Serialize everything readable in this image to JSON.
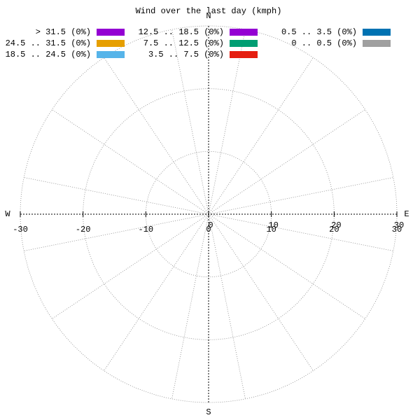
{
  "chart_data": {
    "type": "windrose",
    "title": "Wind over the last day (kmph)",
    "directions": [
      "N",
      "E",
      "S",
      "W"
    ],
    "xlim": [
      -30,
      30
    ],
    "xticks": [
      -30,
      -20,
      -10,
      0,
      10,
      20,
      30
    ],
    "rticks": [
      0,
      10,
      20,
      30
    ],
    "grid": true,
    "series": [
      {
        "name": "> 31.5 (0%)",
        "color": "#9400d3"
      },
      {
        "name": "24.5 .. 31.5 (0%)",
        "color": "#e69f00"
      },
      {
        "name": "18.5 .. 24.5 (0%)",
        "color": "#56b4e9"
      },
      {
        "name": "12.5 .. 18.5 (0%)",
        "color": "#9400d3"
      },
      {
        "name": "7.5 .. 12.5 (0%)",
        "color": "#009e73"
      },
      {
        "name": "3.5 .. 7.5 (0%)",
        "color": "#e51e10"
      },
      {
        "name": "0.5 .. 3.5 (0%)",
        "color": "#0072b2"
      },
      {
        "name": "0 .. 0.5 (0%)",
        "color": "#a0a0a0"
      }
    ]
  }
}
